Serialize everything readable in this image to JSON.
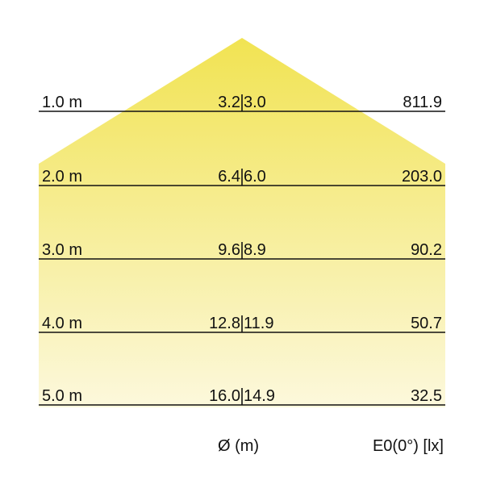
{
  "colors": {
    "cone_top": "#f1e352",
    "cone_bottom": "#fcf8dc",
    "line": "#111111"
  },
  "rows": [
    {
      "distance": "1.0 m",
      "diameter_a": "3.2",
      "diameter_b": "3.0",
      "lux": "811.9"
    },
    {
      "distance": "2.0 m",
      "diameter_a": "6.4",
      "diameter_b": "6.0",
      "lux": "203.0"
    },
    {
      "distance": "3.0 m",
      "diameter_a": "9.6",
      "diameter_b": "8.9",
      "lux": "90.2"
    },
    {
      "distance": "4.0 m",
      "diameter_a": "12.8",
      "diameter_b": "11.9",
      "lux": "50.7"
    },
    {
      "distance": "5.0 m",
      "diameter_a": "16.0",
      "diameter_b": "14.9",
      "lux": "32.5"
    }
  ],
  "footer": {
    "diameter_label": "Ø (m)",
    "lux_label": "E0(0°) [lx]"
  }
}
